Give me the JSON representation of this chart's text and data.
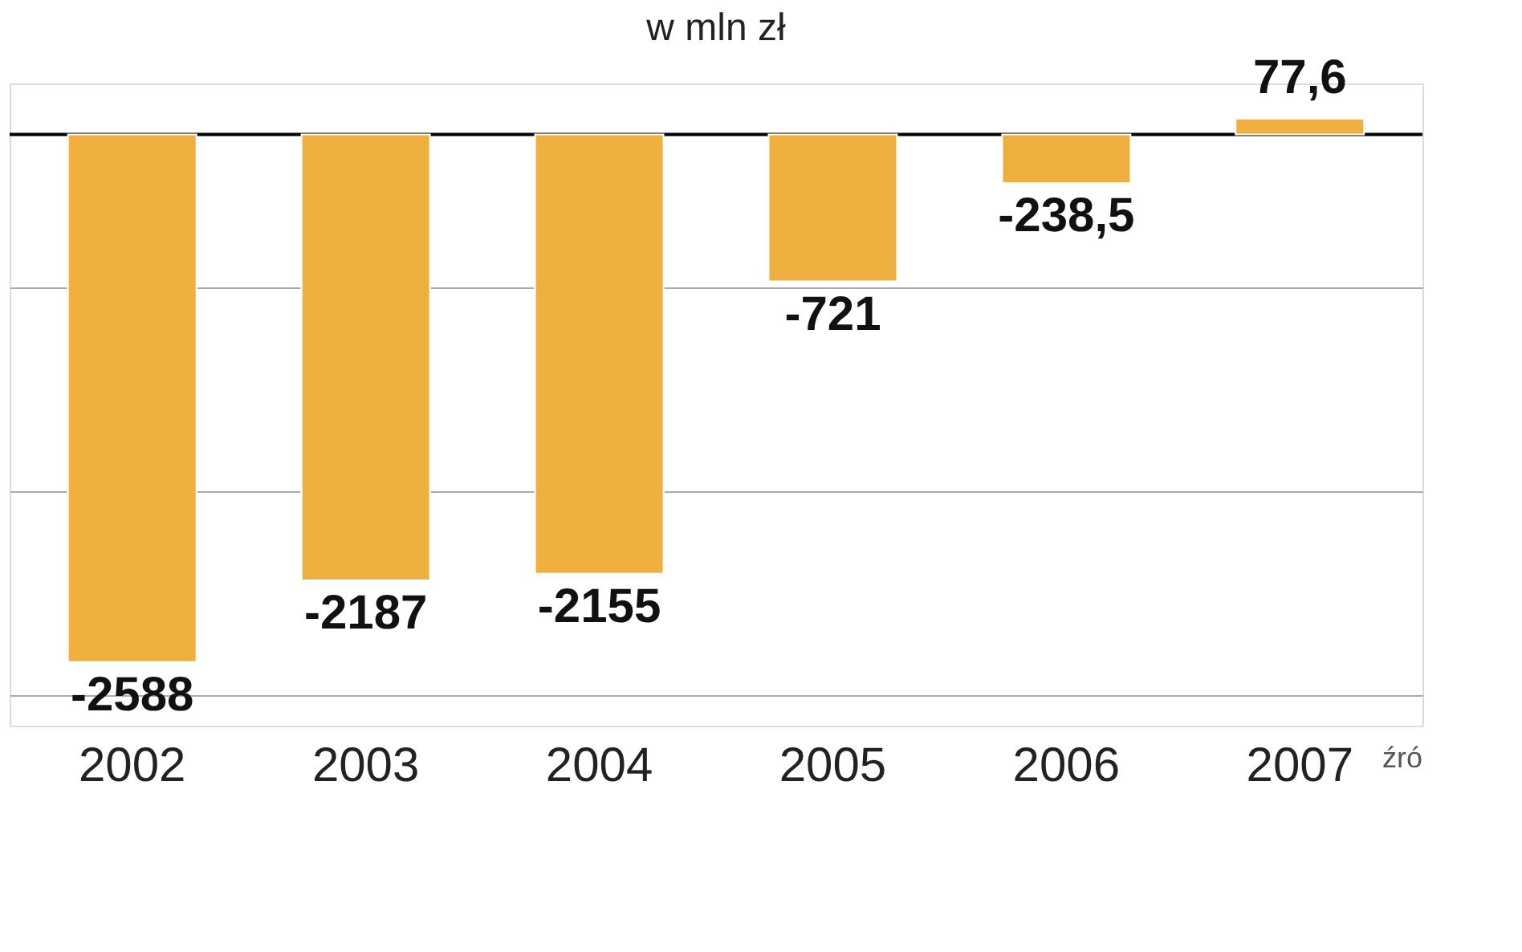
{
  "chart_data": {
    "type": "bar",
    "title": "w mln zł",
    "categories": [
      "2002",
      "2003",
      "2004",
      "2005",
      "2006",
      "2007"
    ],
    "values": [
      -2588,
      -2187,
      -2155,
      -721,
      -238.5,
      77.6
    ],
    "value_labels": [
      "-2588",
      "-2187",
      "-2155",
      "-721",
      "-238,5",
      "77,6"
    ],
    "color": "#f0b040",
    "ylim": [
      -2900,
      250
    ],
    "yticks": [
      {
        "value": -750,
        "label": null
      },
      {
        "value": -1750,
        "label": null
      },
      {
        "value": -2750,
        "label": null
      }
    ],
    "grid": "y",
    "tick_labels": "x",
    "ref_lines": [
      {
        "axis": "y",
        "value": 0,
        "color": "#000000"
      }
    ],
    "annotations": [
      "źró"
    ]
  }
}
